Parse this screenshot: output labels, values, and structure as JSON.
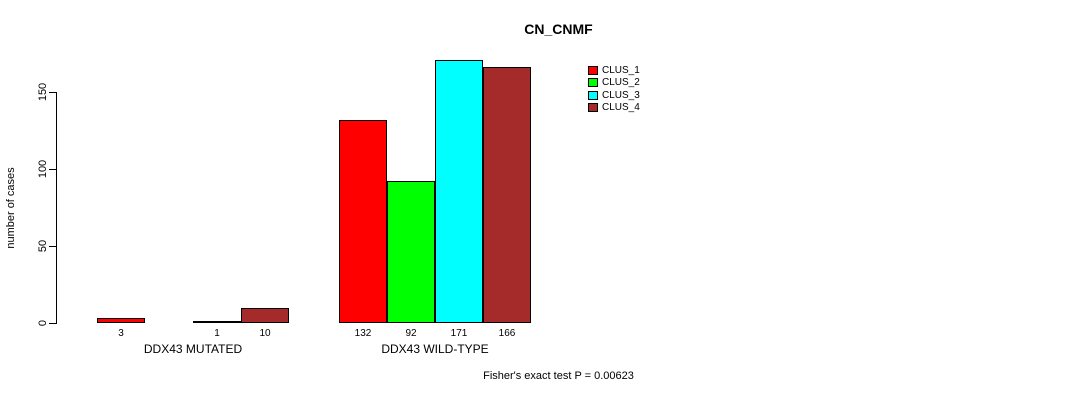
{
  "title": "CN_CNMF",
  "y_axis": {
    "label": "number of cases",
    "ticks": [
      0,
      50,
      100,
      150
    ]
  },
  "footer": "Fisher's exact test P = 0.00623",
  "legend": {
    "items": [
      {
        "label": "CLUS_1",
        "color": "#FF0000"
      },
      {
        "label": "CLUS_2",
        "color": "#00FF00"
      },
      {
        "label": "CLUS_3",
        "color": "#00FFFF"
      },
      {
        "label": "CLUS_4",
        "color": "#A52A2A"
      }
    ]
  },
  "chart_data": {
    "type": "bar",
    "title": "CN_CNMF",
    "xlabel": "",
    "ylabel": "number of cases",
    "ylim": [
      0,
      175
    ],
    "yticks": [
      0,
      50,
      100,
      150
    ],
    "grid": false,
    "legend_position": "top-right",
    "categories": [
      "DDX43 MUTATED",
      "DDX43 WILD-TYPE"
    ],
    "series": [
      {
        "name": "CLUS_1",
        "color": "#FF0000",
        "values": [
          3,
          132
        ]
      },
      {
        "name": "CLUS_2",
        "color": "#00FF00",
        "values": [
          0,
          92
        ]
      },
      {
        "name": "CLUS_3",
        "color": "#00FFFF",
        "values": [
          1,
          171
        ]
      },
      {
        "name": "CLUS_4",
        "color": "#A52A2A",
        "values": [
          10,
          166
        ]
      }
    ],
    "bar_value_labels": [
      [
        "3",
        "",
        "1",
        "10"
      ],
      [
        "132",
        "92",
        "171",
        "166"
      ]
    ],
    "annotation": "Fisher's exact test P = 0.00623"
  }
}
